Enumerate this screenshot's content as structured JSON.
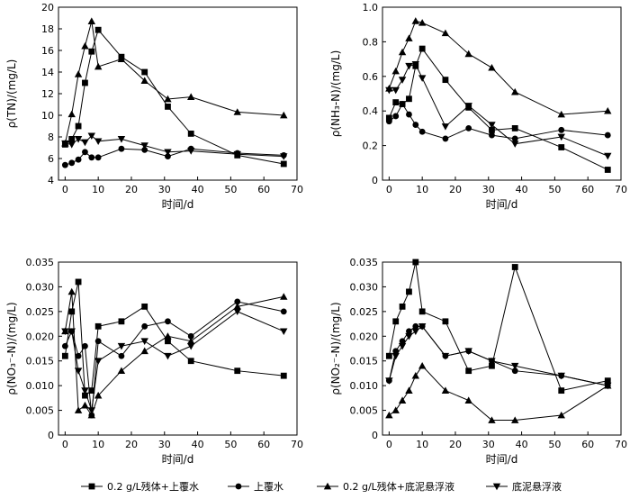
{
  "series_names": [
    "0.2 g/L残体+上覆水",
    "上覆水",
    "0.2 g/L残体+底泥悬浮液",
    "底泥悬浮液"
  ],
  "marker_symbols": [
    "square",
    "circle",
    "triangle-up",
    "triangle-down"
  ],
  "colors": {
    "line": "#000000",
    "background": "#ffffff"
  },
  "chart_data": [
    {
      "type": "line",
      "xlabel": "时间/d",
      "ylabel": "ρ(TN)/(mg/L)",
      "xlim": [
        -2,
        70
      ],
      "ylim": [
        4,
        20
      ],
      "xticks": [
        0,
        10,
        20,
        30,
        40,
        50,
        60,
        70
      ],
      "yticks": [
        4,
        6,
        8,
        10,
        12,
        14,
        16,
        18,
        20
      ],
      "ytick_labels": [
        "4",
        "6",
        "8",
        "10",
        "12",
        "14",
        "16",
        "18",
        "20"
      ],
      "series": [
        {
          "x": [
            0,
            2,
            4,
            6,
            8,
            10,
            17,
            24,
            31,
            38,
            52,
            66
          ],
          "y": [
            7.3,
            7.8,
            9.0,
            13.0,
            15.9,
            17.9,
            15.4,
            14.0,
            10.8,
            8.3,
            6.3,
            5.5
          ]
        },
        {
          "x": [
            0,
            2,
            4,
            6,
            8,
            10,
            17,
            24,
            31,
            38,
            52,
            66
          ],
          "y": [
            5.4,
            5.6,
            5.9,
            6.6,
            6.1,
            6.1,
            6.9,
            6.8,
            6.2,
            6.9,
            6.5,
            6.3
          ]
        },
        {
          "x": [
            0,
            2,
            4,
            6,
            8,
            10,
            17,
            24,
            31,
            38,
            52,
            66
          ],
          "y": [
            7.4,
            10.1,
            13.8,
            16.4,
            18.7,
            14.5,
            15.2,
            13.2,
            11.5,
            11.7,
            10.3,
            10.0
          ]
        },
        {
          "x": [
            0,
            2,
            4,
            6,
            8,
            10,
            17,
            24,
            31,
            38,
            52,
            66
          ],
          "y": [
            7.4,
            7.3,
            7.8,
            7.5,
            8.1,
            7.6,
            7.8,
            7.2,
            6.6,
            6.7,
            6.4,
            6.2
          ]
        }
      ]
    },
    {
      "type": "line",
      "xlabel": "时间/d",
      "ylabel": "ρ(NH₃-N)/(mg/L)",
      "xlim": [
        -2,
        70
      ],
      "ylim": [
        0,
        1.0
      ],
      "xticks": [
        0,
        10,
        20,
        30,
        40,
        50,
        60,
        70
      ],
      "yticks": [
        0,
        0.2,
        0.4,
        0.6,
        0.8,
        1.0
      ],
      "ytick_labels": [
        "0",
        "0.2",
        "0.4",
        "0.6",
        "0.8",
        "1.0"
      ],
      "series": [
        {
          "x": [
            0,
            2,
            4,
            6,
            8,
            10,
            17,
            24,
            31,
            38,
            52,
            66
          ],
          "y": [
            0.36,
            0.45,
            0.44,
            0.47,
            0.66,
            0.76,
            0.58,
            0.42,
            0.29,
            0.3,
            0.19,
            0.06
          ]
        },
        {
          "x": [
            0,
            2,
            4,
            6,
            8,
            10,
            17,
            24,
            31,
            38,
            52,
            66
          ],
          "y": [
            0.34,
            0.37,
            0.44,
            0.38,
            0.32,
            0.28,
            0.24,
            0.3,
            0.26,
            0.24,
            0.29,
            0.26
          ]
        },
        {
          "x": [
            0,
            2,
            4,
            6,
            8,
            10,
            17,
            24,
            31,
            38,
            52,
            66
          ],
          "y": [
            0.53,
            0.63,
            0.74,
            0.82,
            0.92,
            0.91,
            0.85,
            0.73,
            0.65,
            0.51,
            0.38,
            0.4
          ]
        },
        {
          "x": [
            0,
            2,
            4,
            6,
            8,
            10,
            17,
            24,
            31,
            38,
            52,
            66
          ],
          "y": [
            0.52,
            0.52,
            0.58,
            0.66,
            0.67,
            0.59,
            0.31,
            0.43,
            0.32,
            0.21,
            0.25,
            0.14
          ]
        }
      ]
    },
    {
      "type": "line",
      "xlabel": "时间/d",
      "ylabel": "ρ(NO₃⁻-N)/(mg/L)",
      "xlim": [
        -2,
        70
      ],
      "ylim": [
        0,
        0.035
      ],
      "xticks": [
        0,
        10,
        20,
        30,
        40,
        50,
        60,
        70
      ],
      "yticks": [
        0,
        0.005,
        0.01,
        0.015,
        0.02,
        0.025,
        0.03,
        0.035
      ],
      "ytick_labels": [
        "0",
        "0.005",
        "0.010",
        "0.015",
        "0.020",
        "0.025",
        "0.030",
        "0.035"
      ],
      "series": [
        {
          "x": [
            0,
            2,
            4,
            6,
            8,
            10,
            17,
            24,
            31,
            38,
            52,
            66
          ],
          "y": [
            0.016,
            0.025,
            0.031,
            0.008,
            0.009,
            0.022,
            0.023,
            0.026,
            0.019,
            0.015,
            0.013,
            0.012
          ]
        },
        {
          "x": [
            0,
            2,
            4,
            6,
            8,
            10,
            17,
            24,
            31,
            38,
            52,
            66
          ],
          "y": [
            0.018,
            0.021,
            0.016,
            0.018,
            0.004,
            0.019,
            0.016,
            0.022,
            0.023,
            0.02,
            0.027,
            0.025
          ]
        },
        {
          "x": [
            0,
            2,
            4,
            6,
            8,
            10,
            17,
            24,
            31,
            38,
            52,
            66
          ],
          "y": [
            0.021,
            0.029,
            0.005,
            0.006,
            0.004,
            0.008,
            0.013,
            0.017,
            0.02,
            0.019,
            0.026,
            0.028
          ]
        },
        {
          "x": [
            0,
            2,
            4,
            6,
            8,
            10,
            17,
            24,
            31,
            38,
            52,
            66
          ],
          "y": [
            0.021,
            0.021,
            0.013,
            0.009,
            0.005,
            0.015,
            0.018,
            0.019,
            0.016,
            0.018,
            0.025,
            0.021
          ]
        }
      ]
    },
    {
      "type": "line",
      "xlabel": "时间/d",
      "ylabel": "ρ(NO₂⁻-N)/(mg/L)",
      "xlim": [
        -2,
        70
      ],
      "ylim": [
        0,
        0.035
      ],
      "xticks": [
        0,
        10,
        20,
        30,
        40,
        50,
        60,
        70
      ],
      "yticks": [
        0,
        0.005,
        0.01,
        0.015,
        0.02,
        0.025,
        0.03,
        0.035
      ],
      "ytick_labels": [
        "0",
        "0.005",
        "0.010",
        "0.015",
        "0.020",
        "0.025",
        "0.030",
        "0.035"
      ],
      "series": [
        {
          "x": [
            0,
            2,
            4,
            6,
            8,
            10,
            17,
            24,
            31,
            38,
            52,
            66
          ],
          "y": [
            0.016,
            0.023,
            0.026,
            0.029,
            0.035,
            0.025,
            0.023,
            0.013,
            0.014,
            0.034,
            0.009,
            0.011
          ]
        },
        {
          "x": [
            0,
            2,
            4,
            6,
            8,
            10,
            17,
            24,
            31,
            38,
            52,
            66
          ],
          "y": [
            0.011,
            0.017,
            0.019,
            0.021,
            0.022,
            0.022,
            0.016,
            0.017,
            0.015,
            0.013,
            0.012,
            0.01
          ]
        },
        {
          "x": [
            0,
            2,
            4,
            6,
            8,
            10,
            17,
            24,
            31,
            38,
            52,
            66
          ],
          "y": [
            0.004,
            0.005,
            0.007,
            0.009,
            0.012,
            0.014,
            0.009,
            0.007,
            0.003,
            0.003,
            0.004,
            0.01
          ]
        },
        {
          "x": [
            0,
            2,
            4,
            6,
            8,
            10,
            17,
            24,
            31,
            38,
            52,
            66
          ],
          "y": [
            0.011,
            0.016,
            0.018,
            0.02,
            0.021,
            0.022,
            0.016,
            0.017,
            0.015,
            0.014,
            0.012,
            0.01
          ]
        }
      ]
    }
  ]
}
